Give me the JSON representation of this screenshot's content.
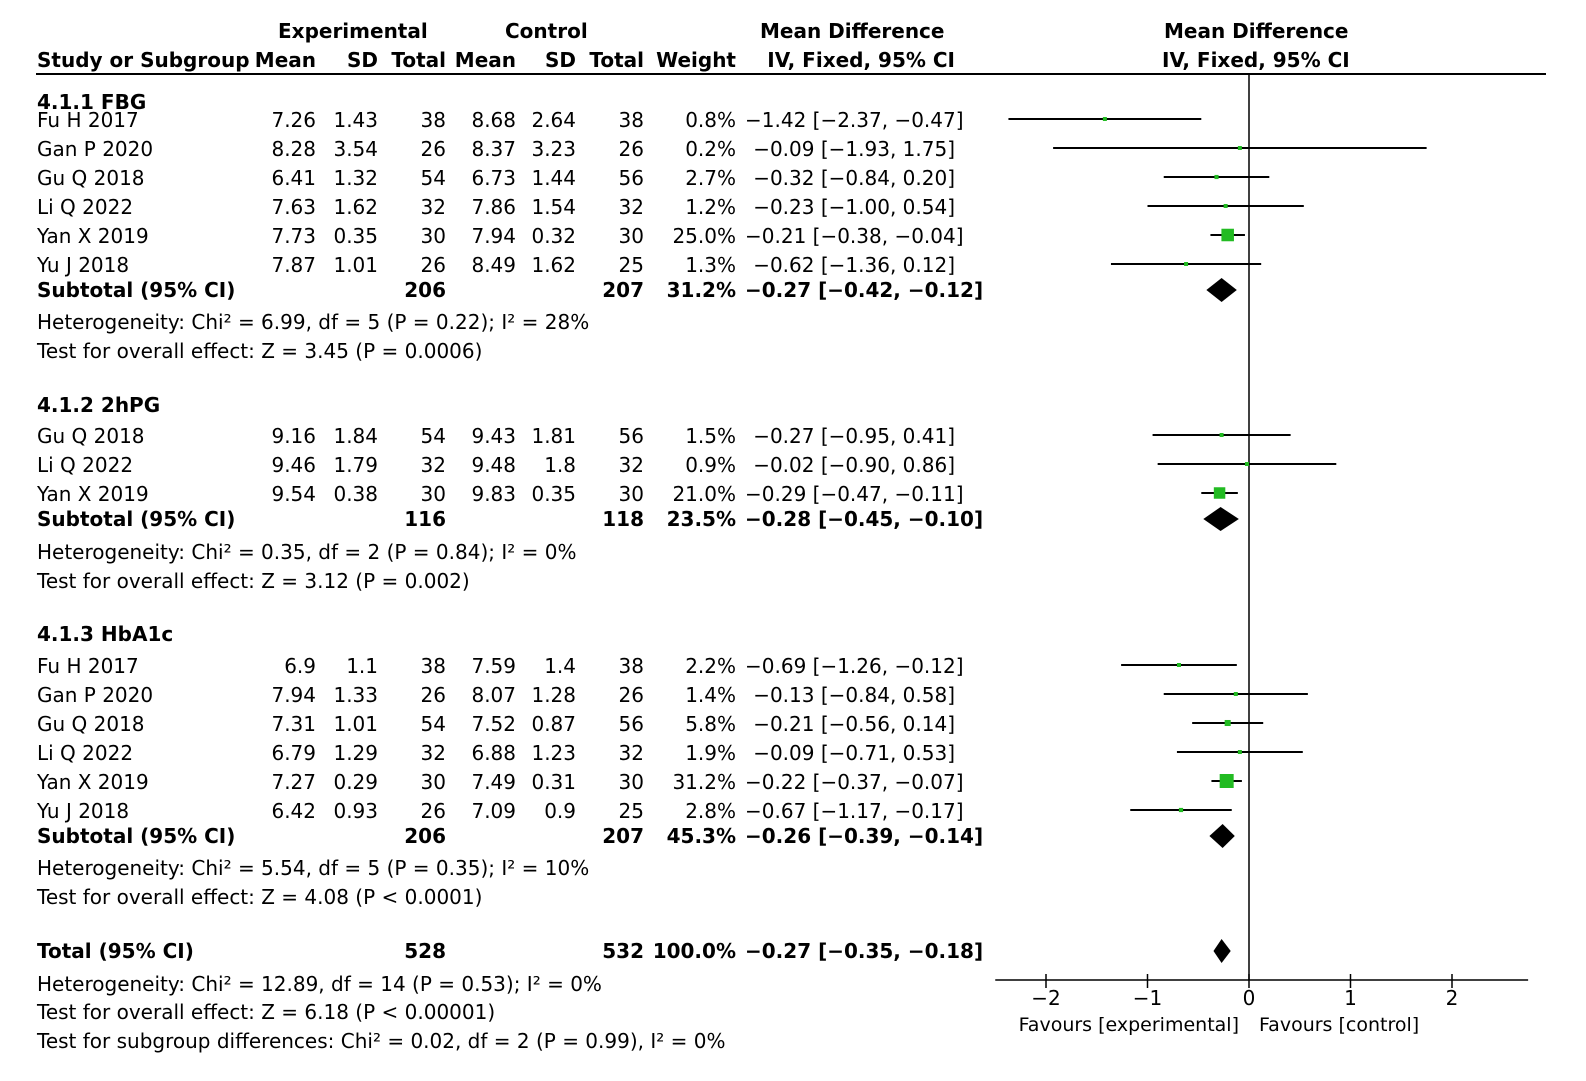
{
  "headers": {
    "group_experimental": "Experimental",
    "group_control": "Control",
    "group_md": "Mean Difference",
    "study": "Study or Subgroup",
    "exp_mean": "Mean",
    "exp_sd": "SD",
    "exp_total": "Total",
    "ctl_mean": "Mean",
    "ctl_sd": "SD",
    "ctl_total": "Total",
    "weight": "Weight",
    "md_ci": "IV, Fixed, 95% CI",
    "plot_title": "Mean Difference",
    "plot_subtitle": "IV, Fixed, 95% CI"
  },
  "subgroups": [
    {
      "title": "4.1.1 FBG",
      "studies": [
        {
          "name": "Fu H 2017",
          "exp_mean": "7.26",
          "exp_sd": "1.43",
          "exp_total": "38",
          "ctl_mean": "8.68",
          "ctl_sd": "2.64",
          "ctl_total": "38",
          "weight": "0.8%",
          "ci_text": "−1.42 [−2.37, −0.47]"
        },
        {
          "name": "Gan P 2020",
          "exp_mean": "8.28",
          "exp_sd": "3.54",
          "exp_total": "26",
          "ctl_mean": "8.37",
          "ctl_sd": "3.23",
          "ctl_total": "26",
          "weight": "0.2%",
          "ci_text": "−0.09 [−1.93, 1.75]"
        },
        {
          "name": "Gu Q 2018",
          "exp_mean": "6.41",
          "exp_sd": "1.32",
          "exp_total": "54",
          "ctl_mean": "6.73",
          "ctl_sd": "1.44",
          "ctl_total": "56",
          "weight": "2.7%",
          "ci_text": "−0.32 [−0.84, 0.20]"
        },
        {
          "name": "Li Q 2022",
          "exp_mean": "7.63",
          "exp_sd": "1.62",
          "exp_total": "32",
          "ctl_mean": "7.86",
          "ctl_sd": "1.54",
          "ctl_total": "32",
          "weight": "1.2%",
          "ci_text": "−0.23 [−1.00, 0.54]"
        },
        {
          "name": "Yan X 2019",
          "exp_mean": "7.73",
          "exp_sd": "0.35",
          "exp_total": "30",
          "ctl_mean": "7.94",
          "ctl_sd": "0.32",
          "ctl_total": "30",
          "weight": "25.0%",
          "ci_text": "−0.21 [−0.38, −0.04]"
        },
        {
          "name": "Yu J 2018",
          "exp_mean": "7.87",
          "exp_sd": "1.01",
          "exp_total": "26",
          "ctl_mean": "8.49",
          "ctl_sd": "1.62",
          "ctl_total": "25",
          "weight": "1.3%",
          "ci_text": "−0.62 [−1.36, 0.12]"
        }
      ],
      "subtotal": {
        "label": "Subtotal (95% CI)",
        "exp_total": "206",
        "ctl_total": "207",
        "weight": "31.2%",
        "ci_text": "−0.27 [−0.42, −0.12]"
      },
      "heterogeneity": "Heterogeneity: Chi² = 6.99, df = 5 (P = 0.22); I² = 28%",
      "overall": "Test for overall effect: Z = 3.45 (P = 0.0006)"
    },
    {
      "title": "4.1.2 2hPG",
      "studies": [
        {
          "name": "Gu Q 2018",
          "exp_mean": "9.16",
          "exp_sd": "1.84",
          "exp_total": "54",
          "ctl_mean": "9.43",
          "ctl_sd": "1.81",
          "ctl_total": "56",
          "weight": "1.5%",
          "ci_text": "−0.27 [−0.95, 0.41]"
        },
        {
          "name": "Li Q 2022",
          "exp_mean": "9.46",
          "exp_sd": "1.79",
          "exp_total": "32",
          "ctl_mean": "9.48",
          "ctl_sd": "1.8",
          "ctl_total": "32",
          "weight": "0.9%",
          "ci_text": "−0.02 [−0.90, 0.86]"
        },
        {
          "name": "Yan X 2019",
          "exp_mean": "9.54",
          "exp_sd": "0.38",
          "exp_total": "30",
          "ctl_mean": "9.83",
          "ctl_sd": "0.35",
          "ctl_total": "30",
          "weight": "21.0%",
          "ci_text": "−0.29 [−0.47, −0.11]"
        }
      ],
      "subtotal": {
        "label": "Subtotal (95% CI)",
        "exp_total": "116",
        "ctl_total": "118",
        "weight": "23.5%",
        "ci_text": "−0.28 [−0.45, −0.10]"
      },
      "heterogeneity": "Heterogeneity: Chi² = 0.35, df = 2 (P = 0.84); I² = 0%",
      "overall": "Test for overall effect: Z = 3.12 (P = 0.002)"
    },
    {
      "title": "4.1.3 HbA1c",
      "studies": [
        {
          "name": "Fu H 2017",
          "exp_mean": "6.9",
          "exp_sd": "1.1",
          "exp_total": "38",
          "ctl_mean": "7.59",
          "ctl_sd": "1.4",
          "ctl_total": "38",
          "weight": "2.2%",
          "ci_text": "−0.69 [−1.26, −0.12]"
        },
        {
          "name": "Gan P 2020",
          "exp_mean": "7.94",
          "exp_sd": "1.33",
          "exp_total": "26",
          "ctl_mean": "8.07",
          "ctl_sd": "1.28",
          "ctl_total": "26",
          "weight": "1.4%",
          "ci_text": "−0.13 [−0.84, 0.58]"
        },
        {
          "name": "Gu Q 2018",
          "exp_mean": "7.31",
          "exp_sd": "1.01",
          "exp_total": "54",
          "ctl_mean": "7.52",
          "ctl_sd": "0.87",
          "ctl_total": "56",
          "weight": "5.8%",
          "ci_text": "−0.21 [−0.56, 0.14]"
        },
        {
          "name": "Li Q 2022",
          "exp_mean": "6.79",
          "exp_sd": "1.29",
          "exp_total": "32",
          "ctl_mean": "6.88",
          "ctl_sd": "1.23",
          "ctl_total": "32",
          "weight": "1.9%",
          "ci_text": "−0.09 [−0.71, 0.53]"
        },
        {
          "name": "Yan X 2019",
          "exp_mean": "7.27",
          "exp_sd": "0.29",
          "exp_total": "30",
          "ctl_mean": "7.49",
          "ctl_sd": "0.31",
          "ctl_total": "30",
          "weight": "31.2%",
          "ci_text": "−0.22 [−0.37, −0.07]"
        },
        {
          "name": "Yu J 2018",
          "exp_mean": "6.42",
          "exp_sd": "0.93",
          "exp_total": "26",
          "ctl_mean": "7.09",
          "ctl_sd": "0.9",
          "ctl_total": "25",
          "weight": "2.8%",
          "ci_text": "−0.67 [−1.17, −0.17]"
        }
      ],
      "subtotal": {
        "label": "Subtotal (95% CI)",
        "exp_total": "206",
        "ctl_total": "207",
        "weight": "45.3%",
        "ci_text": "−0.26 [−0.39, −0.14]"
      },
      "heterogeneity": "Heterogeneity: Chi² = 5.54, df = 5 (P = 0.35); I² = 10%",
      "overall": "Test for overall effect: Z = 4.08 (P < 0.0001)"
    }
  ],
  "total": {
    "label": "Total (95% CI)",
    "exp_total": "528",
    "ctl_total": "532",
    "weight": "100.0%",
    "ci_text": "−0.27 [−0.35, −0.18]"
  },
  "footnotes": {
    "heterogeneity": "Heterogeneity: Chi² = 12.89, df = 14 (P = 0.53); I² = 0%",
    "overall": "Test for overall effect: Z = 6.18 (P < 0.00001)",
    "subgroup_diff": "Test for subgroup differences: Chi² = 0.02, df = 2 (P = 0.99), I² = 0%"
  },
  "chart_data": {
    "type": "forest",
    "xlim": [
      -2.5,
      2.75
    ],
    "x_ticks": [
      -2,
      -1,
      0,
      1,
      2
    ],
    "x_tick_labels": [
      "−2",
      "−1",
      "0",
      "1",
      "2"
    ],
    "favours_left": "Favours [experimental]",
    "favours_right": "Favours [control]",
    "study_marker_color": "#22bb22",
    "summary_marker_color": "#000000",
    "clip_x": [
      -2.4,
      2.75
    ],
    "studies": [
      {
        "subgroup": 0,
        "index": 0,
        "md": -1.42,
        "lo": -2.37,
        "hi": -0.47,
        "weight": 0.8
      },
      {
        "subgroup": 0,
        "index": 1,
        "md": -0.09,
        "lo": -1.93,
        "hi": 1.75,
        "weight": 0.2
      },
      {
        "subgroup": 0,
        "index": 2,
        "md": -0.32,
        "lo": -0.84,
        "hi": 0.2,
        "weight": 2.7
      },
      {
        "subgroup": 0,
        "index": 3,
        "md": -0.23,
        "lo": -1.0,
        "hi": 0.54,
        "weight": 1.2
      },
      {
        "subgroup": 0,
        "index": 4,
        "md": -0.21,
        "lo": -0.38,
        "hi": -0.04,
        "weight": 25.0
      },
      {
        "subgroup": 0,
        "index": 5,
        "md": -0.62,
        "lo": -1.36,
        "hi": 0.12,
        "weight": 1.3
      },
      {
        "subgroup": 1,
        "index": 0,
        "md": -0.27,
        "lo": -0.95,
        "hi": 0.41,
        "weight": 1.5
      },
      {
        "subgroup": 1,
        "index": 1,
        "md": -0.02,
        "lo": -0.9,
        "hi": 0.86,
        "weight": 0.9
      },
      {
        "subgroup": 1,
        "index": 2,
        "md": -0.29,
        "lo": -0.47,
        "hi": -0.11,
        "weight": 21.0
      },
      {
        "subgroup": 2,
        "index": 0,
        "md": -0.69,
        "lo": -1.26,
        "hi": -0.12,
        "weight": 2.2
      },
      {
        "subgroup": 2,
        "index": 1,
        "md": -0.13,
        "lo": -0.84,
        "hi": 0.58,
        "weight": 1.4
      },
      {
        "subgroup": 2,
        "index": 2,
        "md": -0.21,
        "lo": -0.56,
        "hi": 0.14,
        "weight": 5.8
      },
      {
        "subgroup": 2,
        "index": 3,
        "md": -0.09,
        "lo": -0.71,
        "hi": 0.53,
        "weight": 1.9
      },
      {
        "subgroup": 2,
        "index": 4,
        "md": -0.22,
        "lo": -0.37,
        "hi": -0.07,
        "weight": 31.2
      },
      {
        "subgroup": 2,
        "index": 5,
        "md": -0.67,
        "lo": -1.17,
        "hi": -0.17,
        "weight": 2.8
      }
    ],
    "summaries": [
      {
        "subgroup": 0,
        "md": -0.27,
        "lo": -0.42,
        "hi": -0.12
      },
      {
        "subgroup": 1,
        "md": -0.28,
        "lo": -0.45,
        "hi": -0.1
      },
      {
        "subgroup": 2,
        "md": -0.26,
        "lo": -0.39,
        "hi": -0.14
      },
      {
        "subgroup": "total",
        "md": -0.27,
        "lo": -0.35,
        "hi": -0.18
      }
    ]
  }
}
